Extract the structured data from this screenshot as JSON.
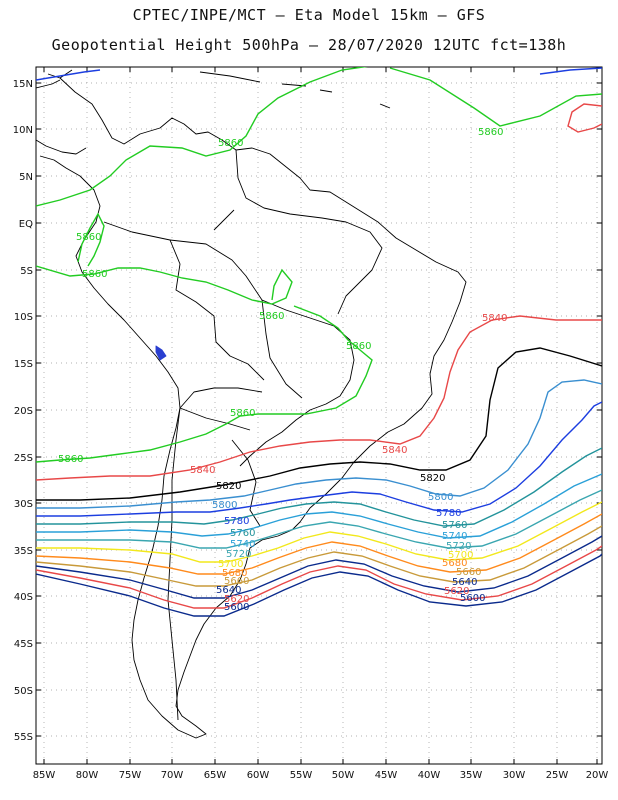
{
  "title": {
    "line1": "CPTEC/INPE/MCT – Eta Model 15km – GFS",
    "line2": "Geopotential Height 500hPa – 28/07/2020 12UTC fct=138h"
  },
  "map": {
    "lat_labels": [
      "15N",
      "10N",
      "5N",
      "EQ",
      "5S",
      "10S",
      "15S",
      "20S",
      "25S",
      "30S",
      "35S",
      "40S",
      "45S",
      "50S",
      "55S"
    ],
    "lon_labels": [
      "85W",
      "80W",
      "75W",
      "70W",
      "65W",
      "60W",
      "55W",
      "50W",
      "45W",
      "40W",
      "35W",
      "30W",
      "25W",
      "20W"
    ],
    "lon_range": [
      -86,
      -20
    ],
    "lat_range": [
      -58,
      17
    ]
  },
  "contours": [
    {
      "value": "5860",
      "color": "#22cc22",
      "labels": [
        "5860",
        "5860",
        "5860",
        "5860",
        "5860",
        "5860",
        "5860",
        "5860"
      ]
    },
    {
      "value": "5840",
      "color": "#e84848",
      "labels": [
        "5840",
        "5840",
        "5840"
      ]
    },
    {
      "value": "5820",
      "color": "#000000",
      "labels": [
        "5820",
        "5820"
      ]
    },
    {
      "value": "5800",
      "color": "#3a8fd0",
      "labels": [
        "5800",
        "5800"
      ]
    },
    {
      "value": "5780",
      "color": "#1c3ee0",
      "labels": [
        "5780",
        "5780"
      ]
    },
    {
      "value": "5760",
      "color": "#23939b",
      "labels": [
        "5760",
        "5760"
      ]
    },
    {
      "value": "5740",
      "color": "#2aa0d8",
      "labels": [
        "5740",
        "5740"
      ]
    },
    {
      "value": "5720",
      "color": "#3aa6b0",
      "labels": [
        "5720",
        "5720"
      ]
    },
    {
      "value": "5700",
      "color": "#f2e81c",
      "labels": [
        "5700",
        "5700"
      ]
    },
    {
      "value": "5680",
      "color": "#ff8a1c",
      "labels": [
        "5680",
        "5680"
      ]
    },
    {
      "value": "5660",
      "color": "#c89a3a",
      "labels": [
        "5660",
        "5660"
      ]
    },
    {
      "value": "5640",
      "color": "#0a2a8c",
      "labels": [
        "5640",
        "5640"
      ]
    },
    {
      "value": "5620",
      "color": "#e84848",
      "labels": [
        "5620",
        "5620"
      ]
    },
    {
      "value": "5600",
      "color": "#0a2a8c",
      "labels": [
        "5600",
        "5600"
      ]
    }
  ]
}
